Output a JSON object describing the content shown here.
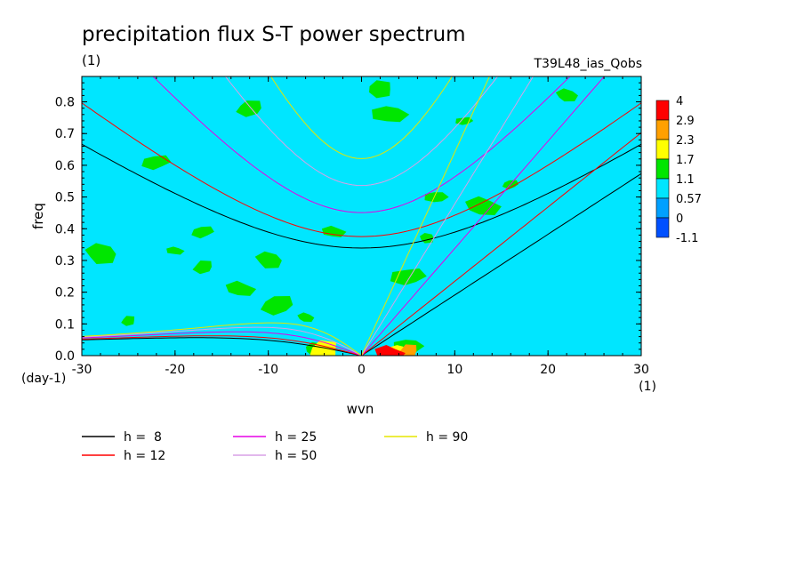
{
  "chart_data": {
    "type": "heatmap",
    "title": "precipitation flux S-T power spectrum",
    "subtitle_left": "(1)",
    "subtitle_right": "T39L48_ias_Qobs",
    "xlabel": "wvn",
    "ylabel": "freq",
    "x_unit_label": "(1)",
    "y_unit_label": "(day-1)",
    "xlim": [
      -30,
      30
    ],
    "ylim": [
      0,
      0.88
    ],
    "x_ticks": [
      -30,
      -20,
      -10,
      0,
      10,
      20,
      30
    ],
    "x_tick_labels": [
      "-30",
      "-20",
      "-10",
      "0",
      "10",
      "20",
      "30"
    ],
    "y_ticks": [
      0.0,
      0.1,
      0.2,
      0.3,
      0.4,
      0.5,
      0.6,
      0.7,
      0.8
    ],
    "y_tick_labels": [
      "0.0",
      "0.1",
      "0.2",
      "0.3",
      "0.4",
      "0.5",
      "0.6",
      "0.7",
      "0.8"
    ],
    "background_level_color": "#00e6ff",
    "colorbar": {
      "levels": [
        "4",
        "2.9",
        "2.3",
        "1.7",
        "1.1",
        "0.57",
        "0",
        "-1.1"
      ],
      "colors": [
        "#ff0000",
        "#ffa000",
        "#ffff00",
        "#00e600",
        "#00e6ff",
        "#00a0ff",
        "#0050ff"
      ]
    },
    "patches": [
      {
        "level": "1.1",
        "x": -20,
        "y": 0.33
      },
      {
        "level": "1.1",
        "x": -17,
        "y": 0.28
      },
      {
        "level": "1.1",
        "x": -13,
        "y": 0.21
      },
      {
        "level": "1.1",
        "x": -9,
        "y": 0.16
      },
      {
        "level": "1.1",
        "x": -6,
        "y": 0.12
      },
      {
        "level": "1.1",
        "x": -17,
        "y": 0.39
      },
      {
        "level": "1.1",
        "x": -10,
        "y": 0.3
      },
      {
        "level": "1.1",
        "x": 5,
        "y": 0.25
      },
      {
        "level": "1.1",
        "x": 7,
        "y": 0.37
      },
      {
        "level": "1.1",
        "x": 8,
        "y": 0.5
      },
      {
        "level": "1.1",
        "x": 2,
        "y": 0.84
      },
      {
        "level": "1.1",
        "x": 3,
        "y": 0.76
      },
      {
        "level": "1.1",
        "x": -25,
        "y": 0.11
      },
      {
        "level": "1.1",
        "x": -3,
        "y": 0.39
      },
      {
        "level": "1.1",
        "x": -12,
        "y": 0.78
      },
      {
        "level": "1.1",
        "x": 13,
        "y": 0.47
      },
      {
        "level": "1.1",
        "x": 16,
        "y": 0.54
      },
      {
        "level": "1.1",
        "x": 22,
        "y": 0.82
      },
      {
        "level": "1.1",
        "x": -22,
        "y": 0.61
      },
      {
        "level": "1.1",
        "x": -28,
        "y": 0.32
      },
      {
        "level": "1.1",
        "x": 11,
        "y": 0.74
      },
      {
        "level": "1.1",
        "x": -5,
        "y": 0.02
      },
      {
        "level": "1.1",
        "x": 5,
        "y": 0.03
      },
      {
        "level": "1.7",
        "x": -4,
        "y": 0.015
      },
      {
        "level": "1.7",
        "x": 4,
        "y": 0.02
      },
      {
        "level": "2.3",
        "x": 5,
        "y": 0.015
      },
      {
        "level": "2.9",
        "x": 3,
        "y": 0.008
      },
      {
        "level": "0.57",
        "x": 0,
        "y": 0.14
      },
      {
        "level": "0.57",
        "x": 12,
        "y": 0.04
      },
      {
        "level": "0.57",
        "x": 18,
        "y": 0.08
      }
    ],
    "series": [
      {
        "name": "h =  8",
        "label": "h =  8",
        "color": "#000000",
        "h": 8
      },
      {
        "name": "h = 12",
        "label": "h = 12",
        "color": "#ff0000",
        "h": 12
      },
      {
        "name": "h = 25",
        "label": "h = 25",
        "color": "#e600e6",
        "h": 25
      },
      {
        "name": "h = 50",
        "label": "h = 50",
        "color": "#d8a0e6",
        "h": 50
      },
      {
        "name": "h = 90",
        "label": "h = 90",
        "color": "#e6e600",
        "h": 90
      }
    ],
    "legend": "bottom"
  }
}
